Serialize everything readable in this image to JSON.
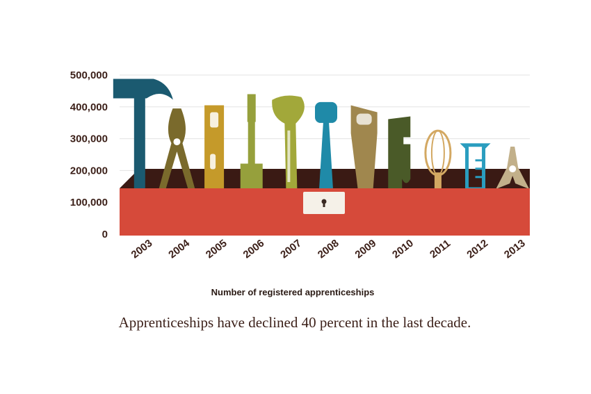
{
  "chart_data": {
    "type": "bar",
    "categories": [
      "2003",
      "2004",
      "2005",
      "2006",
      "2007",
      "2008",
      "2009",
      "2010",
      "2011",
      "2012",
      "2013"
    ],
    "values": [
      488000,
      395000,
      405000,
      440000,
      435000,
      415000,
      405000,
      370000,
      325000,
      280000,
      275000
    ],
    "ylim": [
      0,
      500000
    ],
    "yticks": [
      "0",
      "100,000",
      "200,000",
      "300,000",
      "400,000",
      "500,000"
    ],
    "ytick_values": [
      0,
      100000,
      200000,
      300000,
      400000,
      500000
    ],
    "grid": true,
    "xlabel": "Number of registered apprenticeships",
    "caption": "Apprenticeships have declined 40 percent in the last decade.",
    "tools": [
      "hammer",
      "pliers",
      "level",
      "screwdriver",
      "wrench",
      "mallet",
      "saw",
      "pipe-wrench",
      "whisk",
      "measuring-cup",
      "clamp"
    ],
    "colors": [
      "#1b5a70",
      "#7a6a2c",
      "#c59a2a",
      "#96a03c",
      "#a2a83a",
      "#1f8aa8",
      "#a0874e",
      "#4a5a28",
      "#d3a862",
      "#2a9dbf",
      "#c2b08a"
    ]
  },
  "toolbox": {
    "color": "#d64a3a",
    "interior": "#3a1a14",
    "latch_color": "#f5f1e8"
  }
}
